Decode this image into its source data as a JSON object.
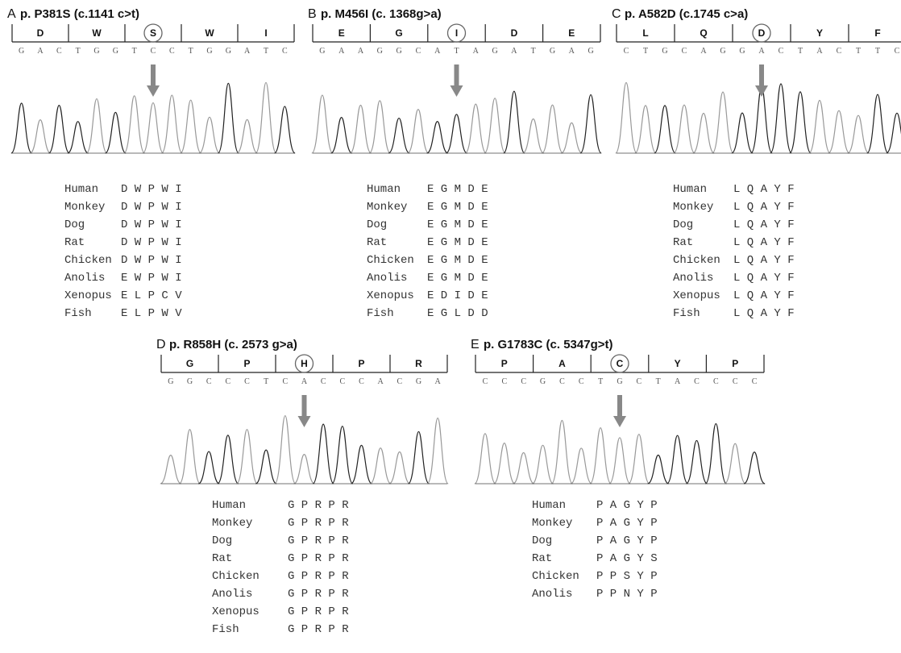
{
  "panels": [
    {
      "letter": "A",
      "title": "p. P381S (c.1141 c>t)",
      "codons": [
        "D",
        "W",
        "S",
        "W",
        "I"
      ],
      "circled": 2,
      "bases": [
        "G",
        "A",
        "C",
        "T",
        "G",
        "G",
        "T",
        "C",
        "C",
        "T",
        "G",
        "G",
        "A",
        "T",
        "C"
      ],
      "species": [
        "Human",
        "Monkey",
        "Dog",
        "Rat",
        "Chicken",
        "Anolis",
        "Xenopus",
        "Fish"
      ],
      "residues": [
        "D W P W I",
        "D W P W I",
        "D W P W I",
        "D W P W I",
        "D W P W I",
        "E W P W I",
        "E L P C V",
        "E L P W V"
      ]
    },
    {
      "letter": "B",
      "title": "p. M456I (c. 1368g>a)",
      "codons": [
        "E",
        "G",
        "I",
        "D",
        "E"
      ],
      "circled": 2,
      "bases": [
        "G",
        "A",
        "A",
        "G",
        "G",
        "C",
        "A",
        "T",
        "A",
        "G",
        "A",
        "T",
        "G",
        "A",
        "G"
      ],
      "species": [
        "Human",
        "Monkey",
        "Dog",
        "Rat",
        "Chicken",
        "Anolis",
        "Xenopus",
        "Fish"
      ],
      "residues": [
        "E G M D E",
        "E G M D E",
        "E G M D E",
        "E G M D E",
        "E G M D E",
        "E G M D E",
        "E D I D E",
        "E G L D D"
      ]
    },
    {
      "letter": "C",
      "title": "p. A582D (c.1745 c>a)",
      "codons": [
        "L",
        "Q",
        "D",
        "Y",
        "F"
      ],
      "circled": 2,
      "bases": [
        "C",
        "T",
        "G",
        "C",
        "A",
        "G",
        "G",
        "A",
        "C",
        "T",
        "A",
        "C",
        "T",
        "T",
        "C"
      ],
      "species": [
        "Human",
        "Monkey",
        "Dog",
        "Rat",
        "Chicken",
        "Anolis",
        "Xenopus",
        "Fish"
      ],
      "residues": [
        "L Q A Y F",
        "L Q A Y F",
        "L Q A Y F",
        "L Q A Y F",
        "L Q A Y F",
        "L Q A Y F",
        "L Q A Y F",
        "L Q A Y F"
      ]
    },
    {
      "letter": "D",
      "title": "p. R858H (c. 2573 g>a)",
      "codons": [
        "G",
        "P",
        "H",
        "P",
        "R"
      ],
      "circled": 2,
      "bases": [
        "G",
        "G",
        "C",
        "C",
        "C",
        "T",
        "C",
        "A",
        "C",
        "C",
        "C",
        "A",
        "C",
        "G",
        "A"
      ],
      "species": [
        "Human",
        "Monkey",
        "Dog",
        "Rat",
        "Chicken",
        "Anolis",
        "Xenopus",
        "Fish"
      ],
      "residues": [
        "G P R P R",
        "G P R P R",
        "G P R P R",
        "G P R P R",
        "G P R P R",
        "G P R P R",
        "G P R P R",
        "G P R P R"
      ]
    },
    {
      "letter": "E",
      "title": "p. G1783C (c. 5347g>t)",
      "codons": [
        "P",
        "A",
        "C",
        "Y",
        "P"
      ],
      "circled": 2,
      "bases": [
        "C",
        "C",
        "C",
        "G",
        "C",
        "C",
        "T",
        "G",
        "C",
        "T",
        "A",
        "C",
        "C",
        "C",
        "C"
      ],
      "species": [
        "Human",
        "Monkey",
        "Dog",
        "Rat",
        "Chicken",
        "Anolis"
      ],
      "residues": [
        "P A G Y P",
        "P A G Y P",
        "P A G Y P",
        "P A G Y S",
        "P P S Y P",
        "P P N Y P"
      ]
    }
  ]
}
